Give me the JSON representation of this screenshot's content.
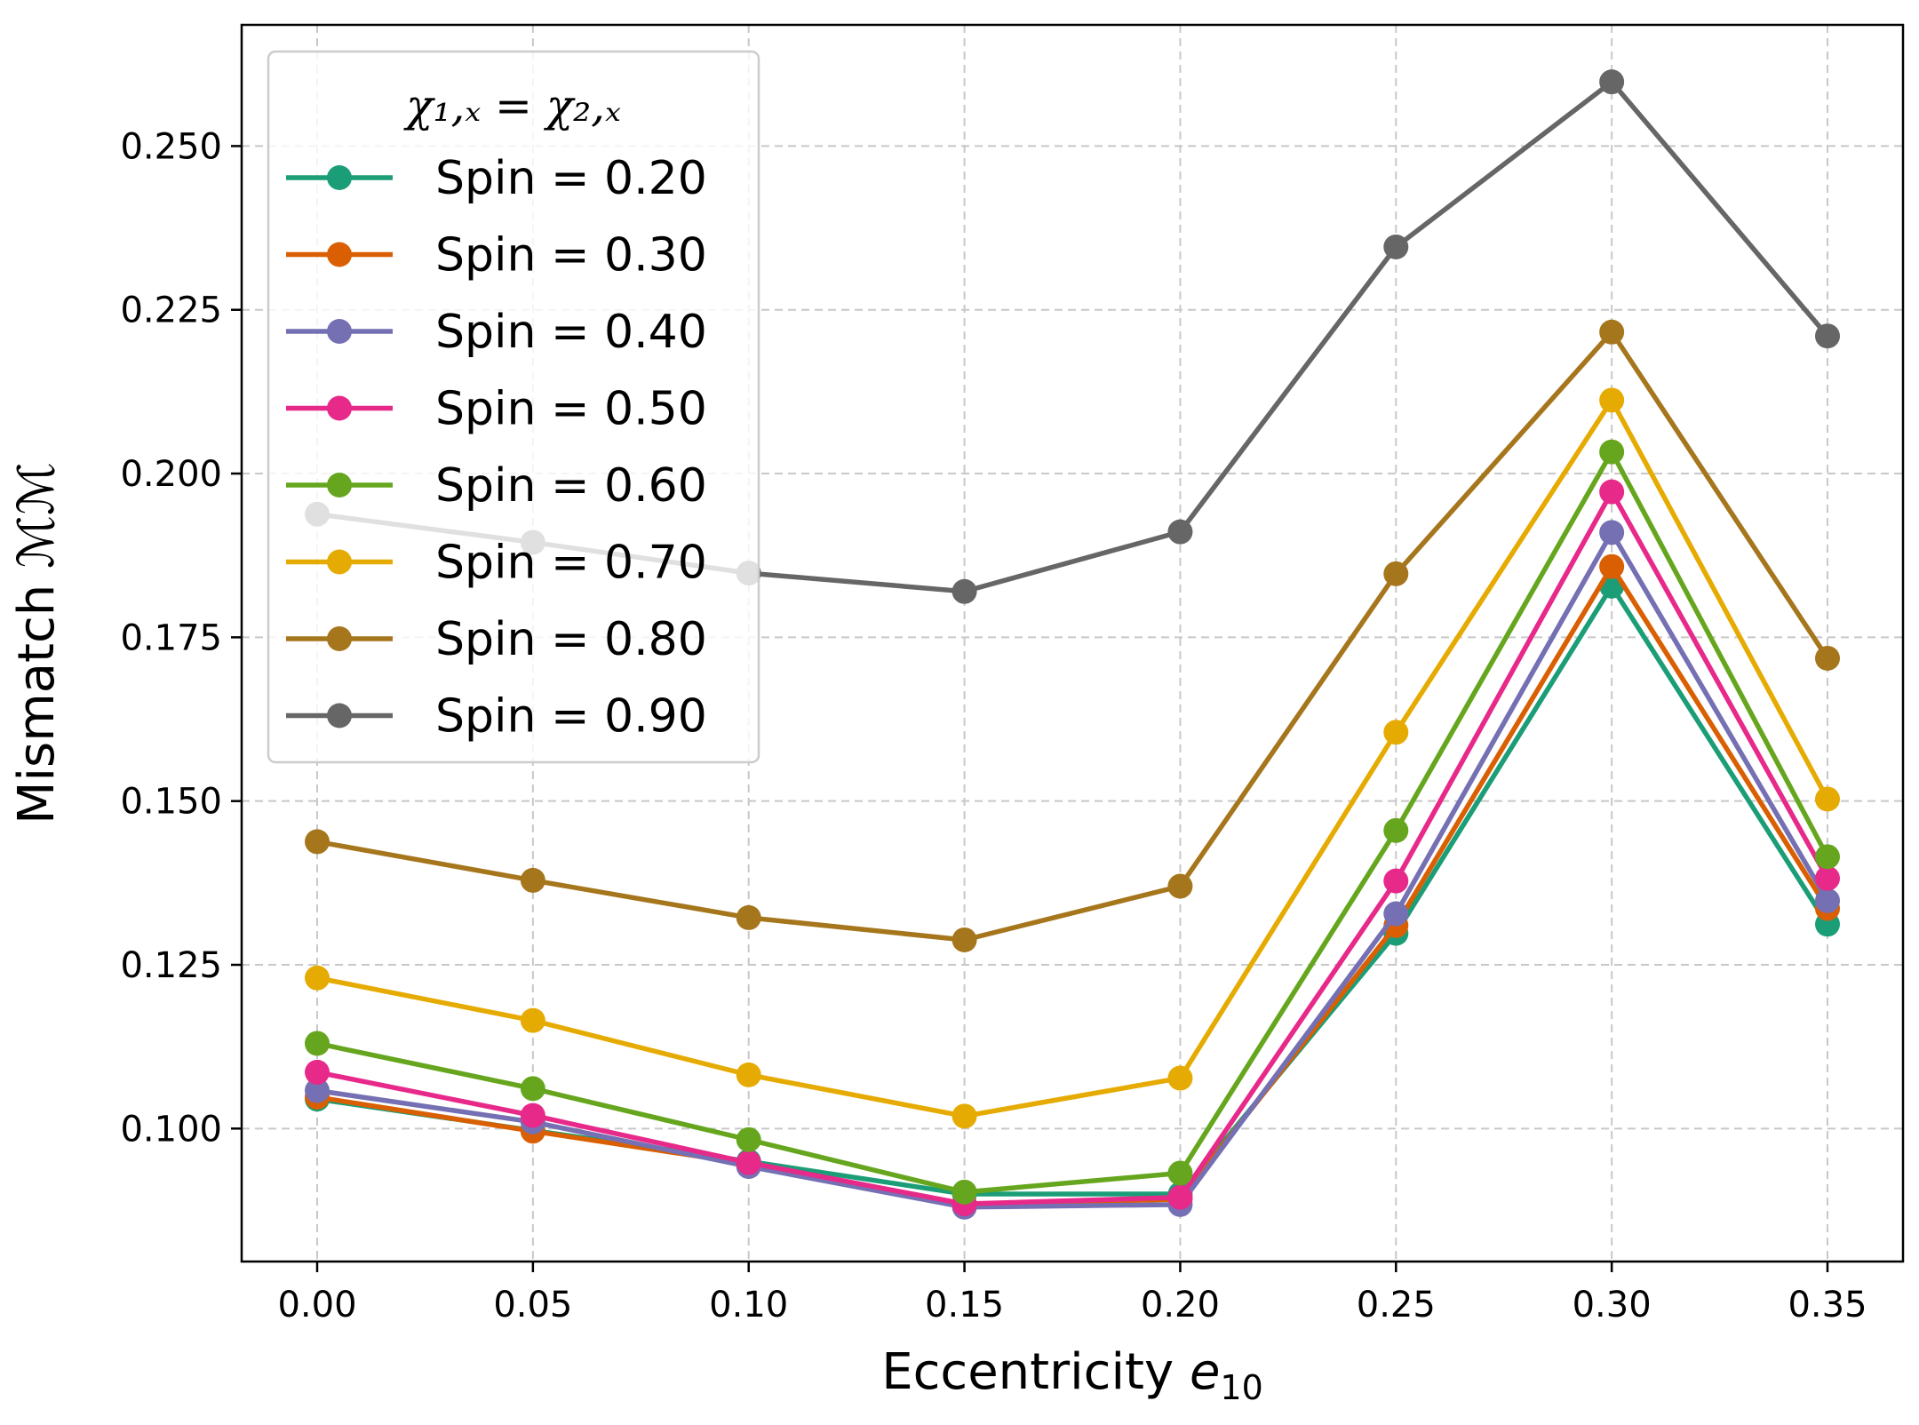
{
  "chart_data": {
    "type": "line",
    "title": "",
    "xlabel_main": "Eccentricity ",
    "xlabel_symbol": "e",
    "xlabel_subscript": "10",
    "ylabel": "Mismatch ℳℳ",
    "x": [
      0.0,
      0.05,
      0.1,
      0.15,
      0.2,
      0.25,
      0.3,
      0.35
    ],
    "xticks": [
      0.0,
      0.05,
      0.1,
      0.15,
      0.2,
      0.25,
      0.3,
      0.35
    ],
    "xtick_labels": [
      "0.00",
      "0.05",
      "0.10",
      "0.15",
      "0.20",
      "0.25",
      "0.30",
      "0.35"
    ],
    "yticks": [
      0.1,
      0.125,
      0.15,
      0.175,
      0.2,
      0.225,
      0.25
    ],
    "ytick_labels": [
      "0.100",
      "0.125",
      "0.150",
      "0.175",
      "0.200",
      "0.225",
      "0.250"
    ],
    "xlim": [
      -0.0175,
      0.3675
    ],
    "ylim": [
      0.0797,
      0.2685
    ],
    "grid": true,
    "legend_position": "top-left",
    "legend_title": "χ₁,ₓ = χ₂,ₓ",
    "series": [
      {
        "name": "Spin = 0.20",
        "color": "#1b9e77",
        "values": [
          0.1045,
          0.0997,
          0.095,
          0.09,
          0.09,
          0.1298,
          0.1828,
          0.1312
        ]
      },
      {
        "name": "Spin = 0.30",
        "color": "#d95f02",
        "values": [
          0.1048,
          0.0996,
          0.0946,
          0.0884,
          0.0892,
          0.131,
          0.1858,
          0.1336
        ]
      },
      {
        "name": "Spin = 0.40",
        "color": "#7570b3",
        "values": [
          0.1058,
          0.101,
          0.0942,
          0.088,
          0.0884,
          0.1328,
          0.191,
          0.1348
        ]
      },
      {
        "name": "Spin = 0.50",
        "color": "#e7298a",
        "values": [
          0.1086,
          0.102,
          0.0948,
          0.0885,
          0.0895,
          0.1378,
          0.1972,
          0.1382
        ]
      },
      {
        "name": "Spin = 0.60",
        "color": "#66a61e",
        "values": [
          0.113,
          0.1061,
          0.0983,
          0.0903,
          0.0932,
          0.1455,
          0.2033,
          0.1415
        ]
      },
      {
        "name": "Spin = 0.70",
        "color": "#e6ab02",
        "values": [
          0.123,
          0.1165,
          0.1082,
          0.1019,
          0.1077,
          0.1605,
          0.2112,
          0.1503
        ]
      },
      {
        "name": "Spin = 0.80",
        "color": "#a6761d",
        "values": [
          0.1438,
          0.1379,
          0.1322,
          0.1288,
          0.137,
          0.1847,
          0.2216,
          0.1718
        ]
      },
      {
        "name": "Spin = 0.90",
        "color": "#666666",
        "values": [
          0.1938,
          0.1895,
          0.1848,
          0.182,
          0.1911,
          0.2346,
          0.2598,
          0.221
        ]
      }
    ]
  }
}
